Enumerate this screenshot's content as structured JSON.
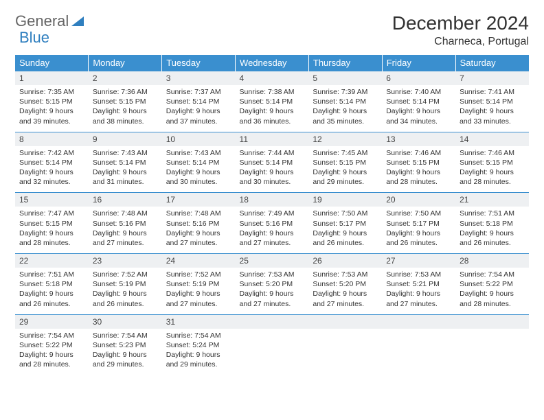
{
  "logo": {
    "text1": "General",
    "text2": "Blue"
  },
  "title": "December 2024",
  "location": "Charneca, Portugal",
  "colors": {
    "header_bg": "#3a8fcf",
    "header_text": "#ffffff",
    "daynum_bg": "#eef0f2",
    "border": "#3a8fcf",
    "logo_gray": "#666666",
    "logo_blue": "#2f7fbf",
    "text": "#333333"
  },
  "weekdays": [
    "Sunday",
    "Monday",
    "Tuesday",
    "Wednesday",
    "Thursday",
    "Friday",
    "Saturday"
  ],
  "weeks": [
    [
      {
        "n": "1",
        "sunrise": "7:35 AM",
        "sunset": "5:15 PM",
        "daylight": "9 hours and 39 minutes."
      },
      {
        "n": "2",
        "sunrise": "7:36 AM",
        "sunset": "5:15 PM",
        "daylight": "9 hours and 38 minutes."
      },
      {
        "n": "3",
        "sunrise": "7:37 AM",
        "sunset": "5:14 PM",
        "daylight": "9 hours and 37 minutes."
      },
      {
        "n": "4",
        "sunrise": "7:38 AM",
        "sunset": "5:14 PM",
        "daylight": "9 hours and 36 minutes."
      },
      {
        "n": "5",
        "sunrise": "7:39 AM",
        "sunset": "5:14 PM",
        "daylight": "9 hours and 35 minutes."
      },
      {
        "n": "6",
        "sunrise": "7:40 AM",
        "sunset": "5:14 PM",
        "daylight": "9 hours and 34 minutes."
      },
      {
        "n": "7",
        "sunrise": "7:41 AM",
        "sunset": "5:14 PM",
        "daylight": "9 hours and 33 minutes."
      }
    ],
    [
      {
        "n": "8",
        "sunrise": "7:42 AM",
        "sunset": "5:14 PM",
        "daylight": "9 hours and 32 minutes."
      },
      {
        "n": "9",
        "sunrise": "7:43 AM",
        "sunset": "5:14 PM",
        "daylight": "9 hours and 31 minutes."
      },
      {
        "n": "10",
        "sunrise": "7:43 AM",
        "sunset": "5:14 PM",
        "daylight": "9 hours and 30 minutes."
      },
      {
        "n": "11",
        "sunrise": "7:44 AM",
        "sunset": "5:14 PM",
        "daylight": "9 hours and 30 minutes."
      },
      {
        "n": "12",
        "sunrise": "7:45 AM",
        "sunset": "5:15 PM",
        "daylight": "9 hours and 29 minutes."
      },
      {
        "n": "13",
        "sunrise": "7:46 AM",
        "sunset": "5:15 PM",
        "daylight": "9 hours and 28 minutes."
      },
      {
        "n": "14",
        "sunrise": "7:46 AM",
        "sunset": "5:15 PM",
        "daylight": "9 hours and 28 minutes."
      }
    ],
    [
      {
        "n": "15",
        "sunrise": "7:47 AM",
        "sunset": "5:15 PM",
        "daylight": "9 hours and 28 minutes."
      },
      {
        "n": "16",
        "sunrise": "7:48 AM",
        "sunset": "5:16 PM",
        "daylight": "9 hours and 27 minutes."
      },
      {
        "n": "17",
        "sunrise": "7:48 AM",
        "sunset": "5:16 PM",
        "daylight": "9 hours and 27 minutes."
      },
      {
        "n": "18",
        "sunrise": "7:49 AM",
        "sunset": "5:16 PM",
        "daylight": "9 hours and 27 minutes."
      },
      {
        "n": "19",
        "sunrise": "7:50 AM",
        "sunset": "5:17 PM",
        "daylight": "9 hours and 26 minutes."
      },
      {
        "n": "20",
        "sunrise": "7:50 AM",
        "sunset": "5:17 PM",
        "daylight": "9 hours and 26 minutes."
      },
      {
        "n": "21",
        "sunrise": "7:51 AM",
        "sunset": "5:18 PM",
        "daylight": "9 hours and 26 minutes."
      }
    ],
    [
      {
        "n": "22",
        "sunrise": "7:51 AM",
        "sunset": "5:18 PM",
        "daylight": "9 hours and 26 minutes."
      },
      {
        "n": "23",
        "sunrise": "7:52 AM",
        "sunset": "5:19 PM",
        "daylight": "9 hours and 26 minutes."
      },
      {
        "n": "24",
        "sunrise": "7:52 AM",
        "sunset": "5:19 PM",
        "daylight": "9 hours and 27 minutes."
      },
      {
        "n": "25",
        "sunrise": "7:53 AM",
        "sunset": "5:20 PM",
        "daylight": "9 hours and 27 minutes."
      },
      {
        "n": "26",
        "sunrise": "7:53 AM",
        "sunset": "5:20 PM",
        "daylight": "9 hours and 27 minutes."
      },
      {
        "n": "27",
        "sunrise": "7:53 AM",
        "sunset": "5:21 PM",
        "daylight": "9 hours and 27 minutes."
      },
      {
        "n": "28",
        "sunrise": "7:54 AM",
        "sunset": "5:22 PM",
        "daylight": "9 hours and 28 minutes."
      }
    ],
    [
      {
        "n": "29",
        "sunrise": "7:54 AM",
        "sunset": "5:22 PM",
        "daylight": "9 hours and 28 minutes."
      },
      {
        "n": "30",
        "sunrise": "7:54 AM",
        "sunset": "5:23 PM",
        "daylight": "9 hours and 29 minutes."
      },
      {
        "n": "31",
        "sunrise": "7:54 AM",
        "sunset": "5:24 PM",
        "daylight": "9 hours and 29 minutes."
      },
      null,
      null,
      null,
      null
    ]
  ],
  "labels": {
    "sunrise": "Sunrise:",
    "sunset": "Sunset:",
    "daylight": "Daylight:"
  }
}
